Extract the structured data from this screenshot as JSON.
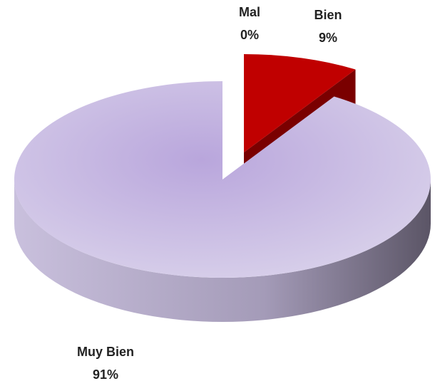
{
  "chart_data": {
    "type": "pie",
    "categories": [
      "Mal",
      "Bien",
      "Muy Bien"
    ],
    "values": [
      0,
      9,
      91
    ],
    "value_labels": [
      "0%",
      "9%",
      "91%"
    ],
    "colors": [
      "#7f7f7f",
      "#c00000",
      "#c8bee0"
    ]
  }
}
